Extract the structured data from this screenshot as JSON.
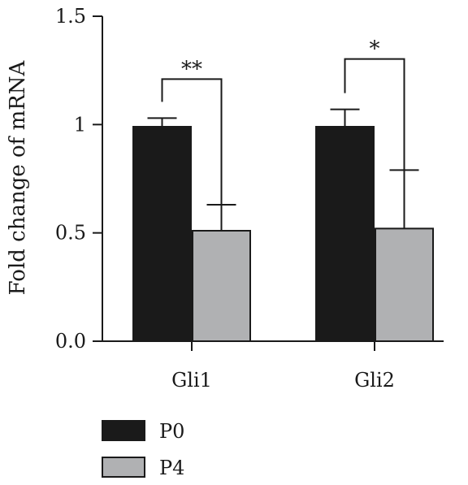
{
  "chart_data": {
    "type": "bar",
    "categories": [
      "Gli1",
      "Gli2"
    ],
    "series": [
      {
        "name": "P0",
        "values": [
          0.99,
          0.99
        ],
        "error": [
          0.04,
          0.08
        ],
        "color": "#1a1a1a"
      },
      {
        "name": "P4",
        "values": [
          0.51,
          0.52
        ],
        "error": [
          0.12,
          0.27
        ],
        "color": "#b0b1b3"
      }
    ],
    "ylabel": "Fold change of mRNA",
    "xlabel": "",
    "ylim": [
      0,
      1.5
    ],
    "yticks": [
      "0.0",
      "0.5",
      "1",
      "1.5"
    ],
    "yticks_values": [
      0,
      0.5,
      1,
      1.5
    ],
    "significance": [
      {
        "category": "Gli1",
        "label": "**"
      },
      {
        "category": "Gli2",
        "label": "*"
      }
    ],
    "legend_position": "bottom-left",
    "grid": false
  }
}
